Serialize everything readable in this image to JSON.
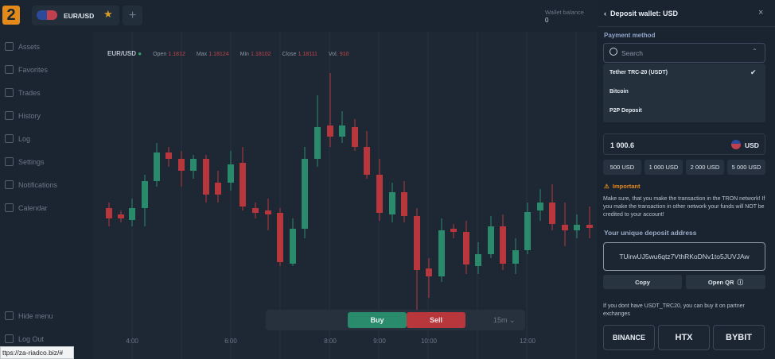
{
  "header": {
    "pair": "EUR/USD",
    "wallet_label": "Wallet balance",
    "wallet_value": "0"
  },
  "sidebar": {
    "items": [
      "Assets",
      "Favorites",
      "Trades",
      "History",
      "Log",
      "Settings",
      "Notifications",
      "Calendar"
    ],
    "hide_menu": "Hide menu",
    "log_out": "Log Out"
  },
  "chart": {
    "pair": "EUR/USD",
    "stats": [
      {
        "label": "Open",
        "value": "1.1812"
      },
      {
        "label": "Max",
        "value": "1.18124"
      },
      {
        "label": "Min",
        "value": "1.18102"
      },
      {
        "label": "Close",
        "value": "1.18111"
      },
      {
        "label": "Vol.",
        "value": "910"
      }
    ],
    "times": [
      "4:00",
      "6:00",
      "8:00",
      "9:00",
      "10:00",
      "12:00"
    ]
  },
  "toolbar": {
    "buy": "Buy",
    "sell": "Sell",
    "interval": "15m"
  },
  "panel": {
    "title": "Deposit wallet: USD",
    "payment_method": "Payment method",
    "search": "Search",
    "options": [
      "Tether TRC-20 (USDT)",
      "Bitcoin",
      "P2P Deposit"
    ],
    "amount": "1 000.6",
    "currency": "USD",
    "quick_amounts": [
      "500 USD",
      "1 000 USD",
      "2 000 USD",
      "5 000 USD"
    ],
    "important": "Important",
    "warning": "Make sure, that you make the transaction in the TRON network! If you make the transaction in other network your funds will NOT be credited to your account!",
    "address_label": "Your unique deposit address",
    "address": "TUirwUJ5wu6qtz7VthRKoDNv1to5JUVJAw",
    "copy": "Copy",
    "open_qr": "Open QR",
    "partner_text": "If you dont have USDT_TRC20, you can buy it on partner exchanges",
    "exchanges": [
      "BINANCE",
      "HTX",
      "BYBIT"
    ]
  },
  "status_bar": "ttps://za-riadco.biz/#"
}
